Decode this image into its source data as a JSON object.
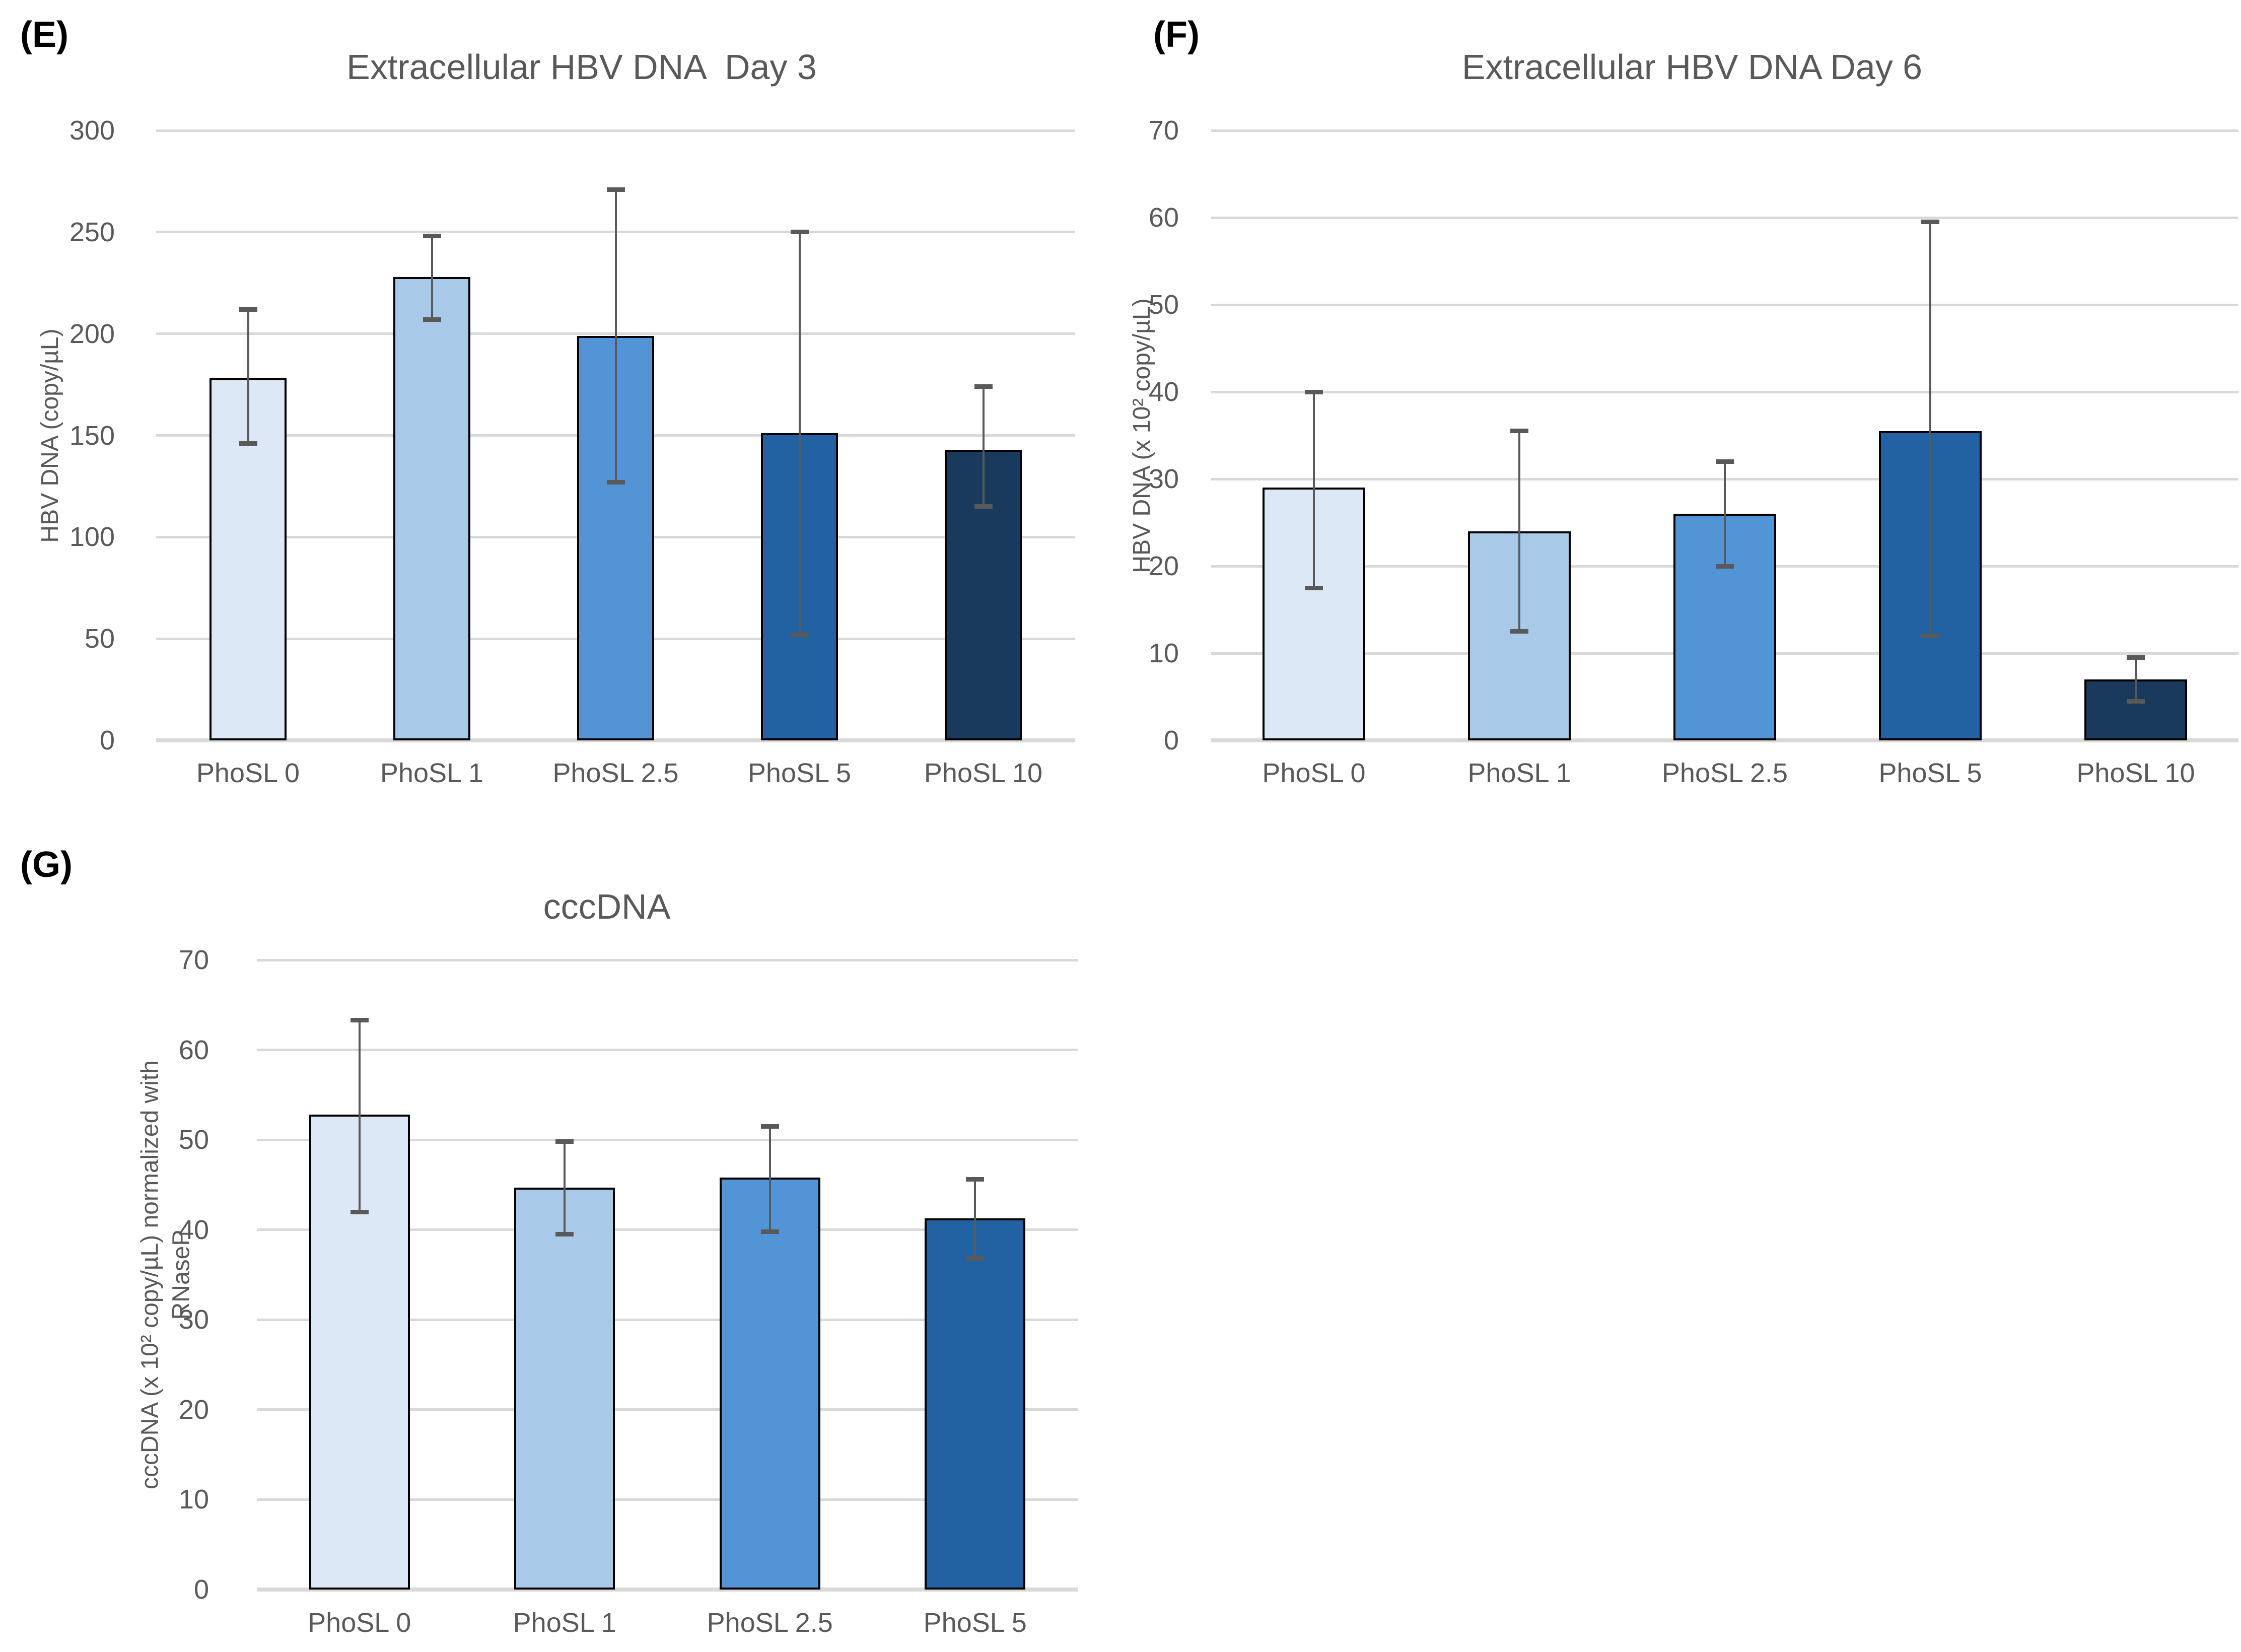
{
  "figure": {
    "background": "#FFFFFF",
    "text_color": "#595959",
    "grid_color": "#D9D9D9",
    "error_bar_color": "#595959",
    "bar_border_color": "#000000",
    "panel_letter_color": "#000000"
  },
  "chart_data": [
    {
      "type": "bar",
      "panel_letter": "(E)",
      "title": "Extracellular HBV DNA  Day 3",
      "xlabel": "",
      "ylabel": "HBV DNA (copy/µL)",
      "ylabel_lines": [
        "HBV DNA (copy/µL)"
      ],
      "categories": [
        "PhoSL 0",
        "PhoSL 1",
        "PhoSL 2.5",
        "PhoSL 5",
        "PhoSL 10"
      ],
      "values": [
        178,
        228,
        199,
        151,
        143
      ],
      "error_top": [
        212,
        248,
        271,
        250,
        174
      ],
      "error_bottom": [
        146,
        207,
        127,
        52,
        115
      ],
      "ylim": [
        0,
        300
      ],
      "ytick_step": 50,
      "grid": true,
      "legend": false,
      "bar_colors": [
        "#DCE8F5",
        "#A9C9E9",
        "#5294D6",
        "#2262A3",
        "#19395D"
      ]
    },
    {
      "type": "bar",
      "panel_letter": "(F)",
      "title": "Extracellular HBV DNA Day 6",
      "xlabel": "",
      "ylabel": "HBV DNA (x 10² copy/µL)",
      "ylabel_lines": [
        "HBV DNA (x 10² copy/µL)"
      ],
      "categories": [
        "PhoSL 0",
        "PhoSL 1",
        "PhoSL 2.5",
        "PhoSL 5",
        "PhoSL 10"
      ],
      "values": [
        29,
        24,
        26,
        35.5,
        7
      ],
      "error_top": [
        40,
        35.5,
        32,
        59.5,
        9.5
      ],
      "error_bottom": [
        17.5,
        12.5,
        20,
        12,
        4.5
      ],
      "ylim": [
        0,
        70
      ],
      "ytick_step": 10,
      "grid": true,
      "legend": false,
      "bar_colors": [
        "#DCE8F5",
        "#A9C9E9",
        "#5294D6",
        "#2262A3",
        "#19395D"
      ]
    },
    {
      "type": "bar",
      "panel_letter": "(G)",
      "title": "cccDNA",
      "xlabel": "",
      "ylabel": "cccDNA (x 10² copy/µL) normalized with RNaseP",
      "ylabel_lines": [
        "cccDNA (x 10² copy/µL) normalized with",
        "RNaseP"
      ],
      "categories": [
        "PhoSL 0",
        "PhoSL 1",
        "PhoSL 2.5",
        "PhoSL 5"
      ],
      "values": [
        52.8,
        44.7,
        45.8,
        41.3
      ],
      "error_top": [
        63.3,
        49.8,
        51.5,
        45.6
      ],
      "error_bottom": [
        42,
        39.5,
        39.8,
        36.8
      ],
      "ylim": [
        0,
        70
      ],
      "ytick_step": 10,
      "grid": true,
      "legend": false,
      "bar_colors": [
        "#DCE8F5",
        "#A9C9E9",
        "#5294D6",
        "#2262A3"
      ]
    }
  ]
}
